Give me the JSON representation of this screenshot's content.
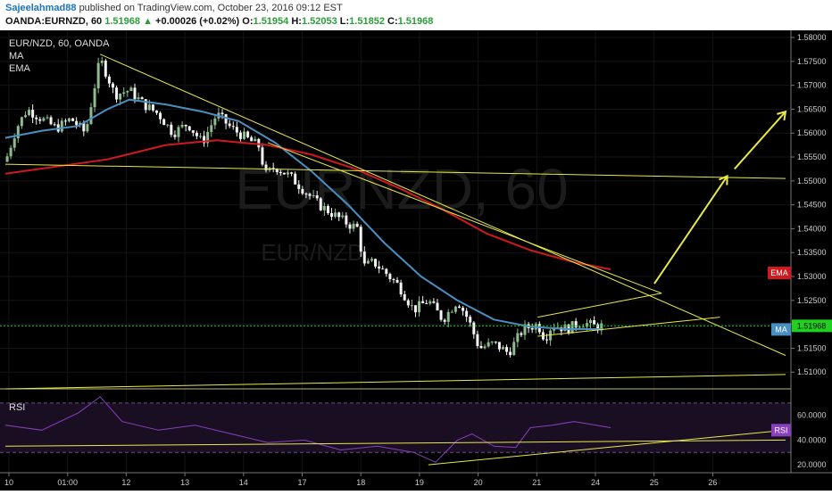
{
  "header": {
    "author": "Sajeelahmad88",
    "published": "published on TradingView.com, October 23, 2016 09:12 EST",
    "symbol": "OANDA:EURNZD, 60",
    "last": "1.51968",
    "change_arrow": "▲",
    "change": "+0.00026 (+0.02%)",
    "open_label": "O:",
    "open": "1.51954",
    "high_label": "H:",
    "high": "1.52053",
    "low_label": "L:",
    "low": "1.51852",
    "close_label": "C:",
    "close": "1.51968"
  },
  "legend": {
    "title": "EUR/NZD, 60, OANDA",
    "ma": "MA",
    "ema": "EMA",
    "watermark_big": "EURNZD, 60",
    "watermark_small": "EUR/NZD",
    "rsi": "RSI"
  },
  "badges": {
    "ema": "EMA",
    "ma": "MA",
    "price": "1.51968",
    "rsi": "RSI"
  },
  "colors": {
    "background": "#000000",
    "bull": "#8fbc8f",
    "bear": "#f4f4f4",
    "ma": "#4a8fc2",
    "ema": "#d0191e",
    "trendline": "#e8e84a",
    "rsi": "#8a3fbf",
    "rsi_band": "#1a0f22",
    "ema_badge": "#d0191e",
    "ma_badge": "#4a8fc2",
    "price_badge": "#20d020",
    "rsi_badge": "#8a3fbf"
  },
  "chart_data": {
    "type": "candlestick",
    "symbol": "EUR/NZD",
    "interval": "60",
    "x_ticks": [
      "10",
      "01:00",
      "12",
      "13",
      "14",
      "17",
      "18",
      "19",
      "20",
      "21",
      "24",
      "25",
      "26"
    ],
    "y_ticks": [
      1.58,
      1.575,
      1.57,
      1.565,
      1.56,
      1.555,
      1.55,
      1.545,
      1.54,
      1.535,
      1.53,
      1.525,
      1.52,
      1.515,
      1.51
    ],
    "y_tick_labels": [
      "1.58000",
      "1.57500",
      "1.57000",
      "1.56500",
      "1.56000",
      "1.55500",
      "1.55000",
      "1.54500",
      "1.54000",
      "1.53500",
      "1.53000",
      "1.52500",
      "1.52000",
      "1.51500",
      "1.51000"
    ],
    "ylim": [
      1.5065,
      1.5815
    ],
    "last_price": 1.51968,
    "price_path": [
      {
        "t": 0,
        "p": 1.554
      },
      {
        "t": 3,
        "p": 1.561
      },
      {
        "t": 6,
        "p": 1.565
      },
      {
        "t": 10,
        "p": 1.563
      },
      {
        "t": 14,
        "p": 1.561
      },
      {
        "t": 18,
        "p": 1.563
      },
      {
        "t": 22,
        "p": 1.56
      },
      {
        "t": 24,
        "p": 1.568
      },
      {
        "t": 26,
        "p": 1.5755
      },
      {
        "t": 28,
        "p": 1.572
      },
      {
        "t": 30,
        "p": 1.568
      },
      {
        "t": 34,
        "p": 1.569
      },
      {
        "t": 38,
        "p": 1.566
      },
      {
        "t": 42,
        "p": 1.564
      },
      {
        "t": 46,
        "p": 1.56
      },
      {
        "t": 50,
        "p": 1.562
      },
      {
        "t": 54,
        "p": 1.558
      },
      {
        "t": 58,
        "p": 1.564
      },
      {
        "t": 62,
        "p": 1.561
      },
      {
        "t": 66,
        "p": 1.559
      },
      {
        "t": 70,
        "p": 1.557
      },
      {
        "t": 71,
        "p": 1.551
      },
      {
        "t": 74,
        "p": 1.553
      },
      {
        "t": 78,
        "p": 1.551
      },
      {
        "t": 82,
        "p": 1.548
      },
      {
        "t": 86,
        "p": 1.545
      },
      {
        "t": 90,
        "p": 1.543
      },
      {
        "t": 94,
        "p": 1.541
      },
      {
        "t": 97,
        "p": 1.54
      },
      {
        "t": 98,
        "p": 1.532
      },
      {
        "t": 101,
        "p": 1.533
      },
      {
        "t": 104,
        "p": 1.531
      },
      {
        "t": 108,
        "p": 1.528
      },
      {
        "t": 112,
        "p": 1.523
      },
      {
        "t": 116,
        "p": 1.525
      },
      {
        "t": 120,
        "p": 1.521
      },
      {
        "t": 124,
        "p": 1.525
      },
      {
        "t": 127,
        "p": 1.521
      },
      {
        "t": 130,
        "p": 1.515
      },
      {
        "t": 134,
        "p": 1.516
      },
      {
        "t": 138,
        "p": 1.514
      },
      {
        "t": 142,
        "p": 1.519
      },
      {
        "t": 146,
        "p": 1.52
      },
      {
        "t": 148,
        "p": 1.517
      },
      {
        "t": 150,
        "p": 1.52
      },
      {
        "t": 154,
        "p": 1.519
      },
      {
        "t": 158,
        "p": 1.5205
      },
      {
        "t": 162,
        "p": 1.5195
      },
      {
        "t": 164,
        "p": 1.51968
      }
    ],
    "ma_path": [
      {
        "t": 0,
        "p": 1.559
      },
      {
        "t": 10,
        "p": 1.5605
      },
      {
        "t": 20,
        "p": 1.5615
      },
      {
        "t": 28,
        "p": 1.565
      },
      {
        "t": 34,
        "p": 1.567
      },
      {
        "t": 44,
        "p": 1.566
      },
      {
        "t": 54,
        "p": 1.5645
      },
      {
        "t": 64,
        "p": 1.5625
      },
      {
        "t": 74,
        "p": 1.558
      },
      {
        "t": 84,
        "p": 1.552
      },
      {
        "t": 94,
        "p": 1.545
      },
      {
        "t": 104,
        "p": 1.537
      },
      {
        "t": 114,
        "p": 1.53
      },
      {
        "t": 124,
        "p": 1.525
      },
      {
        "t": 134,
        "p": 1.521
      },
      {
        "t": 144,
        "p": 1.5195
      },
      {
        "t": 154,
        "p": 1.519
      },
      {
        "t": 164,
        "p": 1.519
      }
    ],
    "ema_path": [
      {
        "t": 0,
        "p": 1.5515
      },
      {
        "t": 14,
        "p": 1.553
      },
      {
        "t": 28,
        "p": 1.5545
      },
      {
        "t": 44,
        "p": 1.5575
      },
      {
        "t": 58,
        "p": 1.5585
      },
      {
        "t": 72,
        "p": 1.5575
      },
      {
        "t": 84,
        "p": 1.5555
      },
      {
        "t": 96,
        "p": 1.5525
      },
      {
        "t": 108,
        "p": 1.5485
      },
      {
        "t": 120,
        "p": 1.544
      },
      {
        "t": 132,
        "p": 1.539
      },
      {
        "t": 144,
        "p": 1.5355
      },
      {
        "t": 156,
        "p": 1.533
      },
      {
        "t": 166,
        "p": 1.5315
      }
    ],
    "trendlines": [
      {
        "from": {
          "t": 26,
          "p": 1.5765
        },
        "to": {
          "t": 214,
          "p": 1.5135
        }
      },
      {
        "from": {
          "t": 0,
          "p": 1.5535
        },
        "to": {
          "t": 214,
          "p": 1.5505
        }
      },
      {
        "from": {
          "t": 0,
          "p": 1.5065
        },
        "to": {
          "t": 214,
          "p": 1.5095
        }
      },
      {
        "from": {
          "t": 146,
          "p": 1.5175
        },
        "to": {
          "t": 196,
          "p": 1.5215
        }
      },
      {
        "from": {
          "t": 146,
          "p": 1.5215
        },
        "to": {
          "t": 180,
          "p": 1.5265
        }
      },
      {
        "from": {
          "t": 72,
          "p": 1.558
        },
        "to": {
          "t": 180,
          "p": 1.5265
        }
      }
    ],
    "arrows": [
      {
        "from": {
          "t": 178,
          "p": 1.5285
        },
        "to": {
          "t": 198,
          "p": 1.551
        }
      },
      {
        "from": {
          "t": 200,
          "p": 1.5525
        },
        "to": {
          "t": 214,
          "p": 1.5645
        }
      }
    ],
    "rsi": {
      "ylim": [
        15,
        80
      ],
      "y_ticks": [
        60,
        40,
        20
      ],
      "y_tick_labels": [
        "60.0000",
        "40.0000",
        "20.0000"
      ],
      "bands": [
        70,
        30
      ],
      "path": [
        {
          "t": 0,
          "p": 52
        },
        {
          "t": 10,
          "p": 48
        },
        {
          "t": 20,
          "p": 62
        },
        {
          "t": 26,
          "p": 75
        },
        {
          "t": 32,
          "p": 55
        },
        {
          "t": 42,
          "p": 48
        },
        {
          "t": 52,
          "p": 52
        },
        {
          "t": 62,
          "p": 45
        },
        {
          "t": 72,
          "p": 38
        },
        {
          "t": 82,
          "p": 40
        },
        {
          "t": 92,
          "p": 32
        },
        {
          "t": 102,
          "p": 35
        },
        {
          "t": 112,
          "p": 30
        },
        {
          "t": 118,
          "p": 22
        },
        {
          "t": 124,
          "p": 40
        },
        {
          "t": 128,
          "p": 45
        },
        {
          "t": 134,
          "p": 35
        },
        {
          "t": 140,
          "p": 34
        },
        {
          "t": 144,
          "p": 50
        },
        {
          "t": 150,
          "p": 52
        },
        {
          "t": 156,
          "p": 55
        },
        {
          "t": 166,
          "p": 50
        }
      ],
      "trendlines": [
        {
          "from": {
            "t": 0,
            "p": 35
          },
          "to": {
            "t": 214,
            "p": 40
          }
        },
        {
          "from": {
            "t": 116,
            "p": 20
          },
          "to": {
            "t": 214,
            "p": 48
          }
        }
      ]
    }
  }
}
